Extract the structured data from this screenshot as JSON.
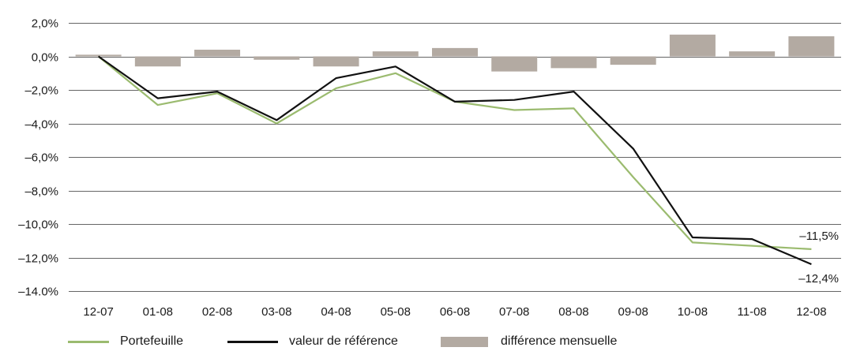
{
  "chart_data": {
    "type": "bar+line",
    "categories": [
      "12-07",
      "01-08",
      "02-08",
      "03-08",
      "04-08",
      "05-08",
      "06-08",
      "07-08",
      "08-08",
      "09-08",
      "10-08",
      "11-08",
      "12-08"
    ],
    "series": [
      {
        "name": "Portefeuille",
        "type": "line",
        "color": "#9bbb6f",
        "values": [
          0.0,
          -2.9,
          -2.2,
          -4.0,
          -1.9,
          -1.0,
          -2.7,
          -3.2,
          -3.1,
          -7.2,
          -11.1,
          -11.3,
          -11.5
        ]
      },
      {
        "name": "valeur de référence",
        "type": "line",
        "color": "#111111",
        "values": [
          0.0,
          -2.5,
          -2.1,
          -3.8,
          -1.3,
          -0.6,
          -2.7,
          -2.6,
          -2.1,
          -5.5,
          -10.8,
          -10.9,
          -12.4
        ]
      },
      {
        "name": "différence mensuelle",
        "type": "bar",
        "color": "#b3aaa2",
        "values": [
          0.1,
          -0.6,
          0.4,
          -0.2,
          -0.6,
          0.3,
          0.5,
          -0.9,
          -0.7,
          -0.5,
          1.3,
          0.3,
          1.2
        ]
      }
    ],
    "yticks": [
      "2,0%",
      "0,0%",
      "–2,0%",
      "–4,0%",
      "–6,0%",
      "–8,0%",
      "–10,0%",
      "–12,0%",
      "–14.0%"
    ],
    "ylim": [
      -14,
      2
    ],
    "ystep": 2,
    "grid": true,
    "legend_position": "bottom",
    "annotations": [
      {
        "text": "–11,5%",
        "series": 0,
        "index": 12,
        "position": "above"
      },
      {
        "text": "–12,4%",
        "series": 1,
        "index": 12,
        "position": "below"
      }
    ]
  }
}
